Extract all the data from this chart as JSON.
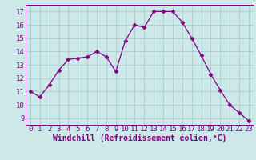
{
  "x": [
    0,
    1,
    2,
    3,
    4,
    5,
    6,
    7,
    8,
    9,
    10,
    11,
    12,
    13,
    14,
    15,
    16,
    17,
    18,
    19,
    20,
    21,
    22,
    23
  ],
  "y": [
    11.0,
    10.6,
    11.5,
    12.6,
    13.4,
    13.5,
    13.6,
    14.0,
    13.6,
    12.5,
    14.8,
    16.0,
    15.8,
    17.0,
    17.0,
    17.0,
    16.2,
    15.0,
    13.7,
    12.3,
    11.1,
    10.0,
    9.4,
    8.8
  ],
  "line_color": "#800080",
  "marker": "D",
  "marker_size": 2.5,
  "bg_color": "#cce8e8",
  "grid_color": "#aacccc",
  "xlabel": "Windchill (Refroidissement éolien,°C)",
  "ylim": [
    8.5,
    17.5
  ],
  "xlim": [
    -0.5,
    23.5
  ],
  "yticks": [
    9,
    10,
    11,
    12,
    13,
    14,
    15,
    16,
    17
  ],
  "xticks": [
    0,
    1,
    2,
    3,
    4,
    5,
    6,
    7,
    8,
    9,
    10,
    11,
    12,
    13,
    14,
    15,
    16,
    17,
    18,
    19,
    20,
    21,
    22,
    23
  ],
  "xlabel_fontsize": 7,
  "tick_fontsize": 6.5,
  "line_color_hex": "#800080"
}
